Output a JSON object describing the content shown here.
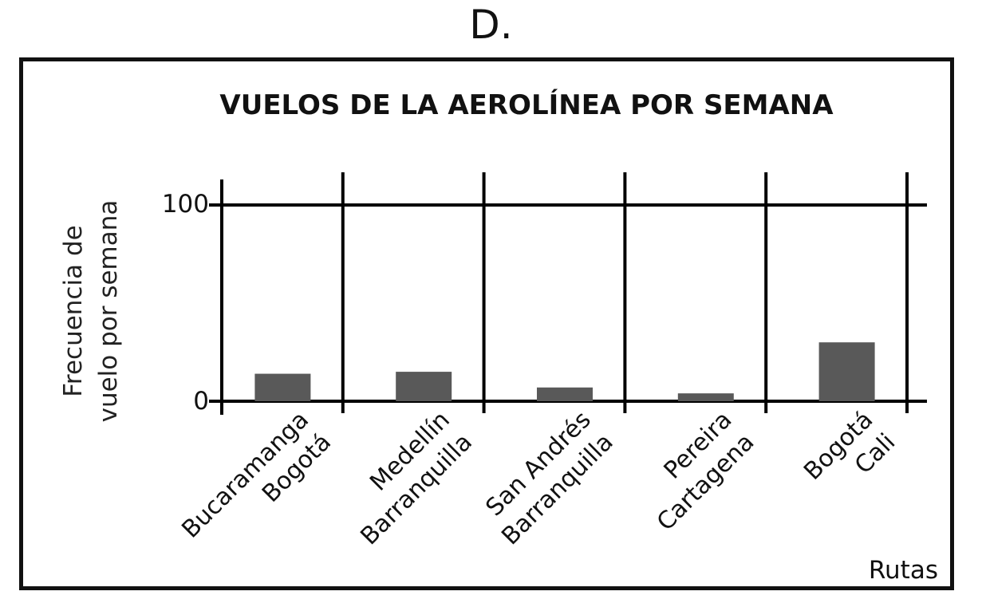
{
  "figure_label": "D.",
  "chart_data": {
    "type": "bar",
    "title": "VUELOS DE LA AEROLÍNEA POR SEMANA",
    "ylabel_lines": [
      "Frecuencia de",
      "vuelo por semana"
    ],
    "xlabel": "Rutas",
    "categories": [
      [
        "Bucaramanga",
        "Bogotá"
      ],
      [
        "Medellín",
        "Barranquilla"
      ],
      [
        "San Andrés",
        "Barranquilla"
      ],
      [
        "Pereira",
        "Cartagena"
      ],
      [
        "Bogotá",
        "Cali"
      ]
    ],
    "values": [
      14,
      15,
      7,
      4,
      30
    ],
    "ylim": [
      0,
      100
    ],
    "yticks": [
      "0",
      "100"
    ],
    "grid": "vertical-separators",
    "bar_color": "#595959",
    "line_color": "#000000"
  }
}
